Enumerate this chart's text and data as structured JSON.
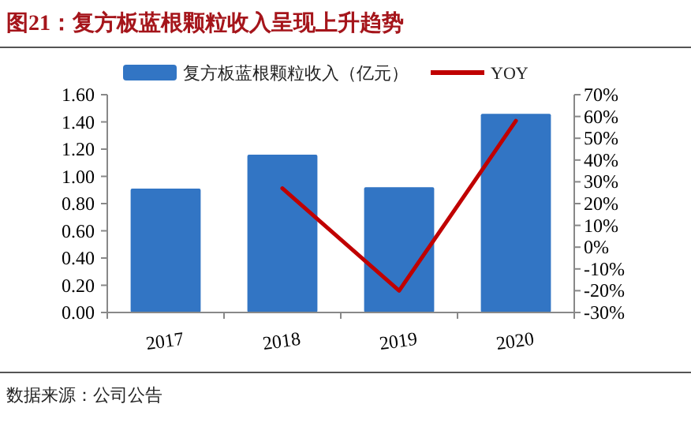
{
  "chart_data": {
    "type": "bar",
    "title": "图21：复方板蓝根颗粒收入呈现上升趋势",
    "categories": [
      "2017",
      "2018",
      "2019",
      "2020"
    ],
    "series": [
      {
        "name": "复方板蓝根颗粒收入（亿元）",
        "color": "#3275c4",
        "values": [
          0.91,
          1.16,
          0.92,
          1.46
        ]
      },
      {
        "name": "YOY",
        "type": "line",
        "axis": "y2",
        "color": "#c00000",
        "values": [
          null,
          27,
          -20,
          58
        ]
      }
    ],
    "ylim": [
      0,
      1.6
    ],
    "yticks": [
      {
        "value": 0,
        "label": "0.00"
      },
      {
        "value": 0.2,
        "label": "0.20"
      },
      {
        "value": 0.4,
        "label": "0.40"
      },
      {
        "value": 0.6,
        "label": "0.60"
      },
      {
        "value": 0.8,
        "label": "0.80"
      },
      {
        "value": 1.0,
        "label": "1.00"
      },
      {
        "value": 1.2,
        "label": "1.20"
      },
      {
        "value": 1.4,
        "label": "1.40"
      },
      {
        "value": 1.6,
        "label": "1.60"
      }
    ],
    "y2lim": [
      -30,
      70
    ],
    "y2ticks": [
      {
        "value": -30,
        "label": "-30%"
      },
      {
        "value": -20,
        "label": "-20%"
      },
      {
        "value": -10,
        "label": "-10%"
      },
      {
        "value": 0,
        "label": "0%"
      },
      {
        "value": 10,
        "label": "10%"
      },
      {
        "value": 20,
        "label": "20%"
      },
      {
        "value": 30,
        "label": "30%"
      },
      {
        "value": 40,
        "label": "40%"
      },
      {
        "value": 50,
        "label": "50%"
      },
      {
        "value": 60,
        "label": "60%"
      },
      {
        "value": 70,
        "label": "70%"
      }
    ],
    "legend": "top",
    "grid": false,
    "annotations": [
      "数据来源：公司公告"
    ]
  }
}
